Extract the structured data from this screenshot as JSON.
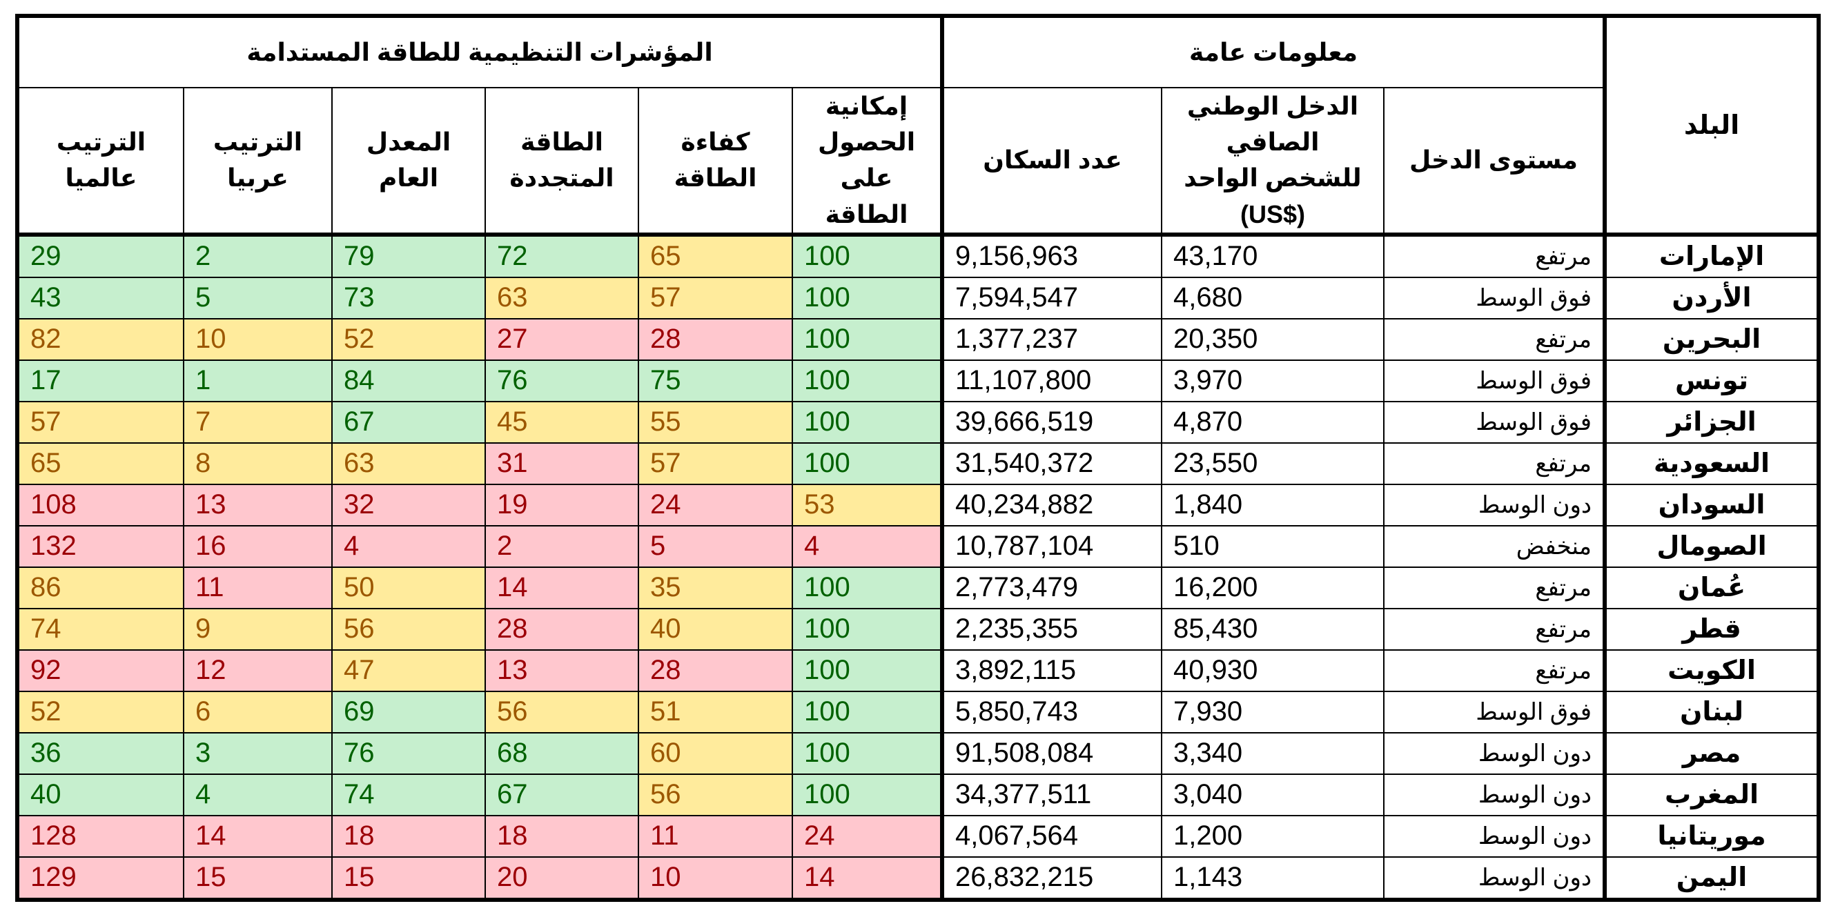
{
  "headers": {
    "country": "البلد",
    "general_info": "معلومات عامة",
    "regulatory": "المؤشرات التنظيمية للطاقة المستدامة",
    "income_level": "مستوى الدخل",
    "gni_line1": "الدخل الوطني الصافي",
    "gni_line2": "للشخص الواحد",
    "gni_line3": "(US$)",
    "population": "عدد السكان",
    "access_line1": "إمكانية",
    "access_line2": "الحصول",
    "access_line3": "على الطاقة",
    "efficiency": "كفاءة الطاقة",
    "renewable_line1": "الطاقة",
    "renewable_line2": "المتجددة",
    "overall": "المعدل العام",
    "arab_rank": "الترتيب عربيا",
    "world_rank_line1": "الترتيب",
    "world_rank_line2": "عالميا"
  },
  "colors": {
    "green_bg": "#c6efce",
    "green_text": "#006100",
    "yellow_bg": "#ffeb9c",
    "yellow_text": "#9c5700",
    "red_bg": "#ffc7ce",
    "red_text": "#9c0006"
  },
  "rows": [
    {
      "country": "الإمارات",
      "income": "مرتفع",
      "gni": "43,170",
      "population": "9,156,963",
      "access": "100",
      "access_c": "green",
      "efficiency": "65",
      "efficiency_c": "yellow",
      "renewable": "72",
      "renewable_c": "green",
      "overall": "79",
      "overall_c": "green",
      "arab": "2",
      "arab_c": "green",
      "world": "29",
      "world_c": "green"
    },
    {
      "country": "الأردن",
      "income": "فوق الوسط",
      "gni": "4,680",
      "population": "7,594,547",
      "access": "100",
      "access_c": "green",
      "efficiency": "57",
      "efficiency_c": "yellow",
      "renewable": "63",
      "renewable_c": "yellow",
      "overall": "73",
      "overall_c": "green",
      "arab": "5",
      "arab_c": "green",
      "world": "43",
      "world_c": "green"
    },
    {
      "country": "البحرين",
      "income": "مرتفع",
      "gni": "20,350",
      "population": "1,377,237",
      "access": "100",
      "access_c": "green",
      "efficiency": "28",
      "efficiency_c": "red",
      "renewable": "27",
      "renewable_c": "red",
      "overall": "52",
      "overall_c": "yellow",
      "arab": "10",
      "arab_c": "yellow",
      "world": "82",
      "world_c": "yellow"
    },
    {
      "country": "تونس",
      "income": "فوق الوسط",
      "gni": "3,970",
      "population": "11,107,800",
      "access": "100",
      "access_c": "green",
      "efficiency": "75",
      "efficiency_c": "green",
      "renewable": "76",
      "renewable_c": "green",
      "overall": "84",
      "overall_c": "green",
      "arab": "1",
      "arab_c": "green",
      "world": "17",
      "world_c": "green"
    },
    {
      "country": "الجزائر",
      "income": "فوق الوسط",
      "gni": "4,870",
      "population": "39,666,519",
      "access": "100",
      "access_c": "green",
      "efficiency": "55",
      "efficiency_c": "yellow",
      "renewable": "45",
      "renewable_c": "yellow",
      "overall": "67",
      "overall_c": "green",
      "arab": "7",
      "arab_c": "yellow",
      "world": "57",
      "world_c": "yellow"
    },
    {
      "country": "السعودية",
      "income": "مرتفع",
      "gni": "23,550",
      "population": "31,540,372",
      "access": "100",
      "access_c": "green",
      "efficiency": "57",
      "efficiency_c": "yellow",
      "renewable": "31",
      "renewable_c": "red",
      "overall": "63",
      "overall_c": "yellow",
      "arab": "8",
      "arab_c": "yellow",
      "world": "65",
      "world_c": "yellow"
    },
    {
      "country": "السودان",
      "income": "دون الوسط",
      "gni": "1,840",
      "population": "40,234,882",
      "access": "53",
      "access_c": "yellow",
      "efficiency": "24",
      "efficiency_c": "red",
      "renewable": "19",
      "renewable_c": "red",
      "overall": "32",
      "overall_c": "red",
      "arab": "13",
      "arab_c": "red",
      "world": "108",
      "world_c": "red"
    },
    {
      "country": "الصومال",
      "income": "منخفض",
      "gni": "510",
      "population": "10,787,104",
      "access": "4",
      "access_c": "red",
      "efficiency": "5",
      "efficiency_c": "red",
      "renewable": "2",
      "renewable_c": "red",
      "overall": "4",
      "overall_c": "red",
      "arab": "16",
      "arab_c": "red",
      "world": "132",
      "world_c": "red"
    },
    {
      "country": "عُمان",
      "income": "مرتفع",
      "gni": "16,200",
      "population": "2,773,479",
      "access": "100",
      "access_c": "green",
      "efficiency": "35",
      "efficiency_c": "yellow",
      "renewable": "14",
      "renewable_c": "red",
      "overall": "50",
      "overall_c": "yellow",
      "arab": "11",
      "arab_c": "red",
      "world": "86",
      "world_c": "yellow"
    },
    {
      "country": "قطر",
      "income": "مرتفع",
      "gni": "85,430",
      "population": "2,235,355",
      "access": "100",
      "access_c": "green",
      "efficiency": "40",
      "efficiency_c": "yellow",
      "renewable": "28",
      "renewable_c": "red",
      "overall": "56",
      "overall_c": "yellow",
      "arab": "9",
      "arab_c": "yellow",
      "world": "74",
      "world_c": "yellow"
    },
    {
      "country": "الكويت",
      "income": "مرتفع",
      "gni": "40,930",
      "population": "3,892,115",
      "access": "100",
      "access_c": "green",
      "efficiency": "28",
      "efficiency_c": "red",
      "renewable": "13",
      "renewable_c": "red",
      "overall": "47",
      "overall_c": "yellow",
      "arab": "12",
      "arab_c": "red",
      "world": "92",
      "world_c": "red"
    },
    {
      "country": "لبنان",
      "income": "فوق الوسط",
      "gni": "7,930",
      "population": "5,850,743",
      "access": "100",
      "access_c": "green",
      "efficiency": "51",
      "efficiency_c": "yellow",
      "renewable": "56",
      "renewable_c": "yellow",
      "overall": "69",
      "overall_c": "green",
      "arab": "6",
      "arab_c": "yellow",
      "world": "52",
      "world_c": "yellow"
    },
    {
      "country": "مصر",
      "income": "دون الوسط",
      "gni": "3,340",
      "population": "91,508,084",
      "access": "100",
      "access_c": "green",
      "efficiency": "60",
      "efficiency_c": "yellow",
      "renewable": "68",
      "renewable_c": "green",
      "overall": "76",
      "overall_c": "green",
      "arab": "3",
      "arab_c": "green",
      "world": "36",
      "world_c": "green"
    },
    {
      "country": "المغرب",
      "income": "دون الوسط",
      "gni": "3,040",
      "population": "34,377,511",
      "access": "100",
      "access_c": "green",
      "efficiency": "56",
      "efficiency_c": "yellow",
      "renewable": "67",
      "renewable_c": "green",
      "overall": "74",
      "overall_c": "green",
      "arab": "4",
      "arab_c": "green",
      "world": "40",
      "world_c": "green"
    },
    {
      "country": "موريتانيا",
      "income": "دون الوسط",
      "gni": "1,200",
      "population": "4,067,564",
      "access": "24",
      "access_c": "red",
      "efficiency": "11",
      "efficiency_c": "red",
      "renewable": "18",
      "renewable_c": "red",
      "overall": "18",
      "overall_c": "red",
      "arab": "14",
      "arab_c": "red",
      "world": "128",
      "world_c": "red"
    },
    {
      "country": "اليمن",
      "income": "دون الوسط",
      "gni": "1,143",
      "population": "26,832,215",
      "access": "14",
      "access_c": "red",
      "efficiency": "10",
      "efficiency_c": "red",
      "renewable": "20",
      "renewable_c": "red",
      "overall": "15",
      "overall_c": "red",
      "arab": "15",
      "arab_c": "red",
      "world": "129",
      "world_c": "red"
    }
  ]
}
